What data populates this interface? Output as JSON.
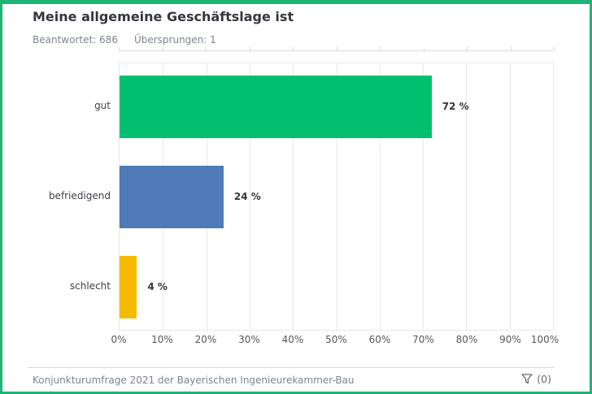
{
  "header": {
    "title": "Meine allgemeine Geschäftslage ist",
    "answered_label": "Beantwortet:",
    "answered_value": "686",
    "skipped_label": "Übersprungen:",
    "skipped_value": "1"
  },
  "chart_data": {
    "type": "bar",
    "orientation": "horizontal",
    "title": "Meine allgemeine Geschäftslage ist",
    "categories": [
      "gut",
      "befriedigend",
      "schlecht"
    ],
    "values": [
      72,
      24,
      4
    ],
    "value_labels": [
      "72 %",
      "24 %",
      "4 %"
    ],
    "bar_colors": [
      "#00bf6f",
      "#4f7bb7",
      "#f6bb00"
    ],
    "xlim": [
      0,
      100
    ],
    "x_tick_labels": [
      "0%",
      "10%",
      "20%",
      "30%",
      "40%",
      "50%",
      "60%",
      "70%",
      "80%",
      "90%",
      "100%"
    ],
    "grid": true,
    "legend": false
  },
  "footer": {
    "source": "Konjunkturumfrage 2021 der Bayerischen Ingenieurekammer-Bau",
    "filter_count": "(0)"
  },
  "colors": {
    "card_border": "#1db475",
    "grid_line": "#e8e8e8",
    "text_dark": "#33373d",
    "text_gray": "#7d858e"
  }
}
